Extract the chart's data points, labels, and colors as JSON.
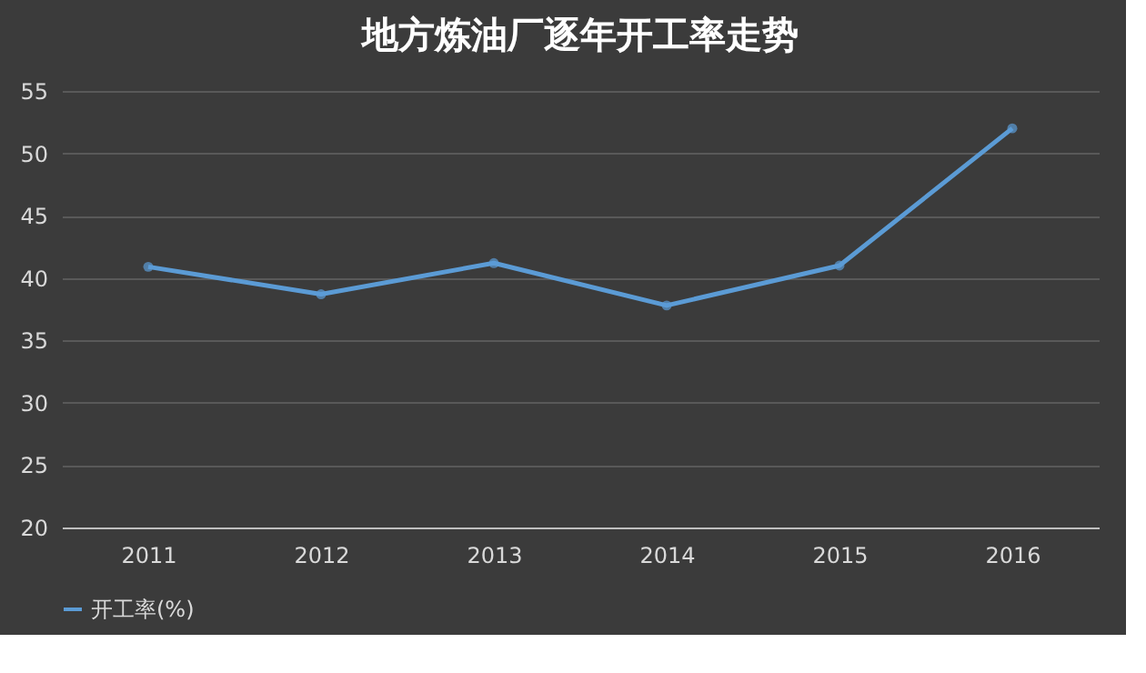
{
  "chart_data": {
    "type": "line",
    "title": "地方炼油厂逐年开工率走势",
    "categories": [
      "2011",
      "2012",
      "2013",
      "2014",
      "2015",
      "2016"
    ],
    "series": [
      {
        "name": "开工率(%)",
        "color": "#5b9bd5",
        "values": [
          40.9,
          38.7,
          41.2,
          37.8,
          41.0,
          52.0
        ]
      }
    ],
    "ylim": [
      20,
      55
    ],
    "yticks": [
      20,
      25,
      30,
      35,
      40,
      45,
      50,
      55
    ],
    "grid": "y",
    "legend": "bottom",
    "marker": "circle",
    "line_style": "solid"
  }
}
